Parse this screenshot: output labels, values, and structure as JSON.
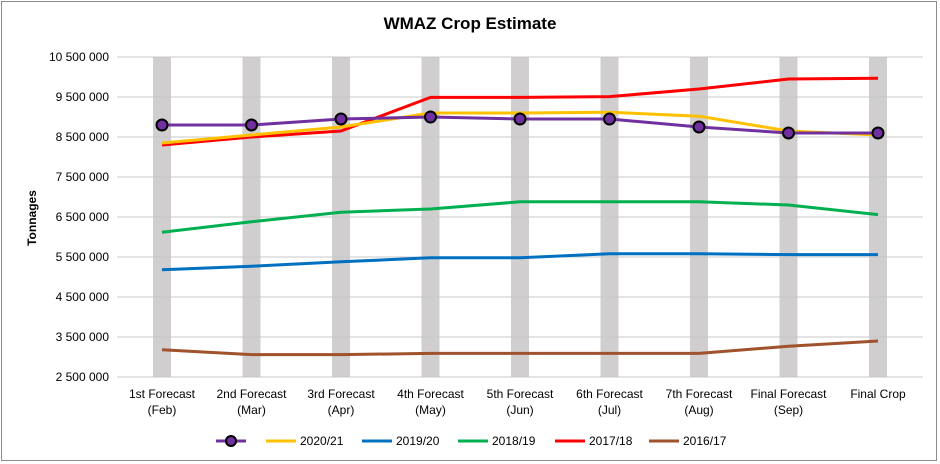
{
  "chart_data": {
    "type": "line",
    "title": "WMAZ Crop Estimate",
    "ylabel": "Tonnages",
    "xlabel": "",
    "ylim": [
      2500000,
      10500000
    ],
    "yticks": [
      2500000,
      3500000,
      4500000,
      5500000,
      6500000,
      7500000,
      8500000,
      9500000,
      10500000
    ],
    "ytick_labels": [
      "2 500 000",
      "3 500 000",
      "4 500 000",
      "5 500 000",
      "6 500 000",
      "7 500 000",
      "8 500 000",
      "9 500 000",
      "10 500 000"
    ],
    "grid": true,
    "legend_position": "bottom",
    "categories": [
      [
        "1st Forecast",
        "(Feb)"
      ],
      [
        "2nd Forecast",
        "(Mar)"
      ],
      [
        "3rd Forecast",
        "(Apr)"
      ],
      [
        "4th Forecast",
        "(May)"
      ],
      [
        "5th Forecast",
        "(Jun)"
      ],
      [
        "6th Forecast",
        "(Jul)"
      ],
      [
        "7th Forecast",
        "(Aug)"
      ],
      [
        "Final Forecast",
        "(Sep)"
      ],
      [
        "Final Crop",
        ""
      ]
    ],
    "series": [
      {
        "name": "",
        "color": "#7030a0",
        "marker": true,
        "values": [
          8800000,
          8800000,
          8950000,
          9000000,
          8950000,
          8950000,
          8750000,
          8600000,
          8600000
        ]
      },
      {
        "name": "2020/21",
        "color": "#ffc000",
        "marker": false,
        "values": [
          8350000,
          8550000,
          8750000,
          9100000,
          9100000,
          9120000,
          9020000,
          8650000,
          8550000
        ]
      },
      {
        "name": "2019/20",
        "color": "#0070c0",
        "marker": false,
        "values": [
          5180000,
          5270000,
          5380000,
          5480000,
          5480000,
          5580000,
          5580000,
          5560000,
          5560000
        ]
      },
      {
        "name": "2018/19",
        "color": "#00b050",
        "marker": false,
        "values": [
          6120000,
          6380000,
          6620000,
          6700000,
          6880000,
          6880000,
          6880000,
          6800000,
          6560000
        ]
      },
      {
        "name": "2017/18",
        "color": "#ff0000",
        "marker": false,
        "values": [
          8300000,
          8500000,
          8650000,
          9490000,
          9490000,
          9510000,
          9700000,
          9950000,
          9970000
        ]
      },
      {
        "name": "2016/17",
        "color": "#a0522d",
        "marker": false,
        "values": [
          3180000,
          3060000,
          3060000,
          3090000,
          3090000,
          3090000,
          3090000,
          3270000,
          3400000
        ]
      }
    ]
  }
}
